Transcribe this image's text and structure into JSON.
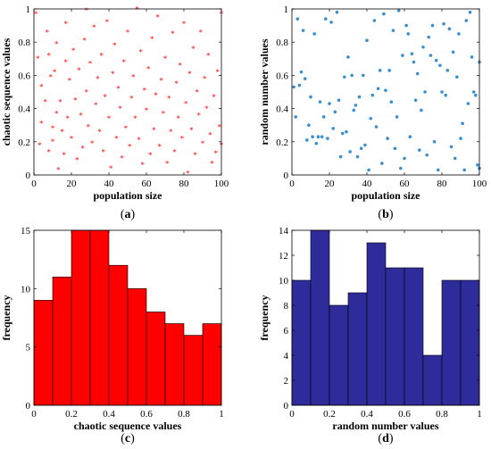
{
  "chart_data": [
    {
      "type": "scatter",
      "panel_label": "a",
      "marker": "asterisk",
      "xlabel": "population size",
      "ylabel": "chaotic sequence values",
      "xlim": [
        0,
        100
      ],
      "ylim": [
        0,
        1
      ],
      "xticks": [
        0,
        20,
        40,
        60,
        80,
        100
      ],
      "yticks": [
        0,
        0.2,
        0.4,
        0.6,
        0.8,
        1
      ],
      "grid": false,
      "series": [
        {
          "color": "#ff0000",
          "points": [
            [
              1,
              0.97
            ],
            [
              2,
              0.7
            ],
            [
              3,
              0.18
            ],
            [
              4,
              0.53
            ],
            [
              4,
              0.31
            ],
            [
              6,
              0.44
            ],
            [
              7,
              0.86
            ],
            [
              8,
              0.14
            ],
            [
              8,
              0.72
            ],
            [
              9,
              0.59
            ],
            [
              10,
              0.28
            ],
            [
              10,
              0.2
            ],
            [
              11,
              0.62
            ],
            [
              12,
              0.37
            ],
            [
              12,
              0.79
            ],
            [
              13,
              0.03
            ],
            [
              14,
              0.44
            ],
            [
              15,
              0.26
            ],
            [
              16,
              0.12
            ],
            [
              17,
              0.68
            ],
            [
              17,
              0.91
            ],
            [
              18,
              0.34
            ],
            [
              19,
              0.57
            ],
            [
              20,
              0.22
            ],
            [
              21,
              0.75
            ],
            [
              22,
              0.45
            ],
            [
              23,
              0.09
            ],
            [
              24,
              0.63
            ],
            [
              25,
              0.36
            ],
            [
              26,
              0.16
            ],
            [
              27,
              0.81
            ],
            [
              28,
              0.99
            ],
            [
              28,
              0.5
            ],
            [
              29,
              0.29
            ],
            [
              30,
              0.67
            ],
            [
              31,
              0.19
            ],
            [
              32,
              0.89
            ],
            [
              33,
              0.42
            ],
            [
              34,
              0.58
            ],
            [
              35,
              0.26
            ],
            [
              36,
              0.72
            ],
            [
              37,
              0.14
            ],
            [
              38,
              0.47
            ],
            [
              39,
              0.92
            ],
            [
              40,
              0.34
            ],
            [
              41,
              0.04
            ],
            [
              42,
              0.61
            ],
            [
              43,
              0.78
            ],
            [
              44,
              0.22
            ],
            [
              45,
              0.52
            ],
            [
              46,
              0.4
            ],
            [
              47,
              0.1
            ],
            [
              48,
              0.68
            ],
            [
              49,
              0.28
            ],
            [
              50,
              0.86
            ],
            [
              51,
              0.17
            ],
            [
              52,
              0.46
            ],
            [
              53,
              0.59
            ],
            [
              54,
              0.34
            ],
            [
              55,
              1.0
            ],
            [
              56,
              0.21
            ],
            [
              57,
              0.74
            ],
            [
              58,
              0.06
            ],
            [
              59,
              0.51
            ],
            [
              60,
              0.39
            ],
            [
              61,
              0.64
            ],
            [
              62,
              0.12
            ],
            [
              63,
              0.82
            ],
            [
              64,
              0.27
            ],
            [
              65,
              0.48
            ],
            [
              66,
              0.95
            ],
            [
              67,
              0.17
            ],
            [
              68,
              0.57
            ],
            [
              69,
              0.37
            ],
            [
              70,
              0.7
            ],
            [
              71,
              0.07
            ],
            [
              72,
              0.46
            ],
            [
              73,
              0.26
            ],
            [
              74,
              0.85
            ],
            [
              75,
              0.14
            ],
            [
              76,
              0.55
            ],
            [
              77,
              0.34
            ],
            [
              78,
              0.66
            ],
            [
              79,
              0.22
            ],
            [
              80,
              0.91
            ],
            [
              81,
              0.43
            ],
            [
              82,
              0.01
            ],
            [
              83,
              0.61
            ],
            [
              84,
              0.27
            ],
            [
              85,
              0.76
            ],
            [
              86,
              0.12
            ],
            [
              87,
              0.5
            ],
            [
              88,
              0.36
            ],
            [
              89,
              0.86
            ],
            [
              90,
              0.19
            ],
            [
              91,
              0.58
            ],
            [
              92,
              0.4
            ],
            [
              93,
              0.72
            ],
            [
              94,
              0.24
            ],
            [
              95,
              0.07
            ],
            [
              96,
              0.47
            ],
            [
              97,
              0.13
            ],
            [
              98,
              0.62
            ],
            [
              99,
              0.29
            ],
            [
              100,
              0.97
            ],
            [
              100,
              0.18
            ]
          ]
        }
      ]
    },
    {
      "type": "scatter",
      "panel_label": "b",
      "marker": "dot",
      "xlabel": "population size",
      "ylabel": "random number values",
      "xlim": [
        0,
        100
      ],
      "ylim": [
        0,
        1
      ],
      "xticks": [
        0,
        20,
        40,
        60,
        80,
        100
      ],
      "yticks": [
        0,
        0.2,
        0.4,
        0.6,
        0.8,
        1
      ],
      "grid": false,
      "series": [
        {
          "color": "#3a8fd1",
          "points": [
            [
              1,
              0.53
            ],
            [
              2,
              0.35
            ],
            [
              3,
              0.94
            ],
            [
              4,
              0.54
            ],
            [
              5,
              0.62
            ],
            [
              6,
              0.87
            ],
            [
              7,
              0.58
            ],
            [
              8,
              0.21
            ],
            [
              9,
              0.3
            ],
            [
              10,
              0.47
            ],
            [
              11,
              0.23
            ],
            [
              12,
              0.85
            ],
            [
              13,
              0.19
            ],
            [
              14,
              0.23
            ],
            [
              15,
              0.44
            ],
            [
              16,
              0.23
            ],
            [
              17,
              0.35
            ],
            [
              18,
              0.94
            ],
            [
              19,
              0.22
            ],
            [
              20,
              0.43
            ],
            [
              21,
              0.92
            ],
            [
              22,
              0.28
            ],
            [
              23,
              0.38
            ],
            [
              24,
              0.98
            ],
            [
              25,
              0.45
            ],
            [
              26,
              0.11
            ],
            [
              27,
              0.25
            ],
            [
              28,
              0.59
            ],
            [
              29,
              0.26
            ],
            [
              30,
              0.71
            ],
            [
              31,
              0.14
            ],
            [
              32,
              0.6
            ],
            [
              33,
              0.39
            ],
            [
              34,
              0.42
            ],
            [
              35,
              0.11
            ],
            [
              36,
              0.47
            ],
            [
              37,
              0.16
            ],
            [
              38,
              0.6
            ],
            [
              39,
              0.18
            ],
            [
              40,
              0.81
            ],
            [
              41,
              0.03
            ],
            [
              42,
              0.34
            ],
            [
              43,
              0.48
            ],
            [
              44,
              0.93
            ],
            [
              45,
              0.29
            ],
            [
              46,
              0.52
            ],
            [
              47,
              0.63
            ],
            [
              48,
              0.07
            ],
            [
              49,
              0.97
            ],
            [
              50,
              0.51
            ],
            [
              51,
              0.22
            ],
            [
              52,
              0.63
            ],
            [
              53,
              0.44
            ],
            [
              54,
              0.87
            ],
            [
              55,
              0.16
            ],
            [
              56,
              0.35
            ],
            [
              57,
              0.99
            ],
            [
              58,
              0.04
            ],
            [
              59,
              0.72
            ],
            [
              60,
              0.1
            ],
            [
              61,
              0.9
            ],
            [
              62,
              0.85
            ],
            [
              63,
              0.23
            ],
            [
              64,
              0.73
            ],
            [
              65,
              0.68
            ],
            [
              66,
              0.45
            ],
            [
              67,
              0.61
            ],
            [
              68,
              0.15
            ],
            [
              69,
              0.39
            ],
            [
              70,
              0.77
            ],
            [
              71,
              0.5
            ],
            [
              72,
              0.12
            ],
            [
              73,
              0.83
            ],
            [
              74,
              0.72
            ],
            [
              75,
              0.9
            ],
            [
              76,
              0.2
            ],
            [
              77,
              0.69
            ],
            [
              78,
              0.03
            ],
            [
              79,
              0.66
            ],
            [
              80,
              0.5
            ],
            [
              81,
              0.91
            ],
            [
              82,
              0.48
            ],
            [
              83,
              0.63
            ],
            [
              84,
              0.88
            ],
            [
              85,
              0.17
            ],
            [
              86,
              0.74
            ],
            [
              87,
              0.1
            ],
            [
              88,
              0.59
            ],
            [
              89,
              0.85
            ],
            [
              90,
              0.22
            ],
            [
              91,
              0.31
            ],
            [
              92,
              0.03
            ],
            [
              93,
              0.93
            ],
            [
              94,
              0.43
            ],
            [
              95,
              0.98
            ],
            [
              96,
              0.71
            ],
            [
              97,
              0.5
            ],
            [
              98,
              0.48
            ],
            [
              99,
              0.06
            ],
            [
              100,
              0.68
            ],
            [
              100,
              0.04
            ]
          ]
        }
      ]
    },
    {
      "type": "bar",
      "subtype": "histogram",
      "panel_label": "c",
      "xlabel": "chaotic sequence values",
      "ylabel": "frequency",
      "xlim": [
        0,
        1
      ],
      "ylim": [
        0,
        15
      ],
      "xticks": [
        0,
        0.2,
        0.4,
        0.6,
        0.8,
        1
      ],
      "yticks": [
        0,
        5,
        10,
        15
      ],
      "grid": false,
      "color": "#ff0000",
      "bin_edges": [
        0,
        0.1,
        0.2,
        0.3,
        0.4,
        0.5,
        0.6,
        0.7,
        0.8,
        0.9,
        1.0
      ],
      "values": [
        9,
        11,
        15,
        15,
        12,
        10,
        8,
        7,
        6,
        7
      ]
    },
    {
      "type": "bar",
      "subtype": "histogram",
      "panel_label": "d",
      "xlabel": "random number values",
      "ylabel": "frequency",
      "xlim": [
        0,
        1
      ],
      "ylim": [
        0,
        14
      ],
      "xticks": [
        0,
        0.2,
        0.4,
        0.6,
        0.8,
        1
      ],
      "yticks": [
        0,
        2,
        4,
        6,
        8,
        10,
        12,
        14
      ],
      "grid": false,
      "color": "#2e2b9b",
      "bin_edges": [
        0,
        0.1,
        0.2,
        0.3,
        0.4,
        0.5,
        0.6,
        0.7,
        0.8,
        0.9,
        1.0
      ],
      "values": [
        10,
        14,
        8,
        9,
        13,
        11,
        11,
        4,
        10,
        10
      ]
    }
  ]
}
